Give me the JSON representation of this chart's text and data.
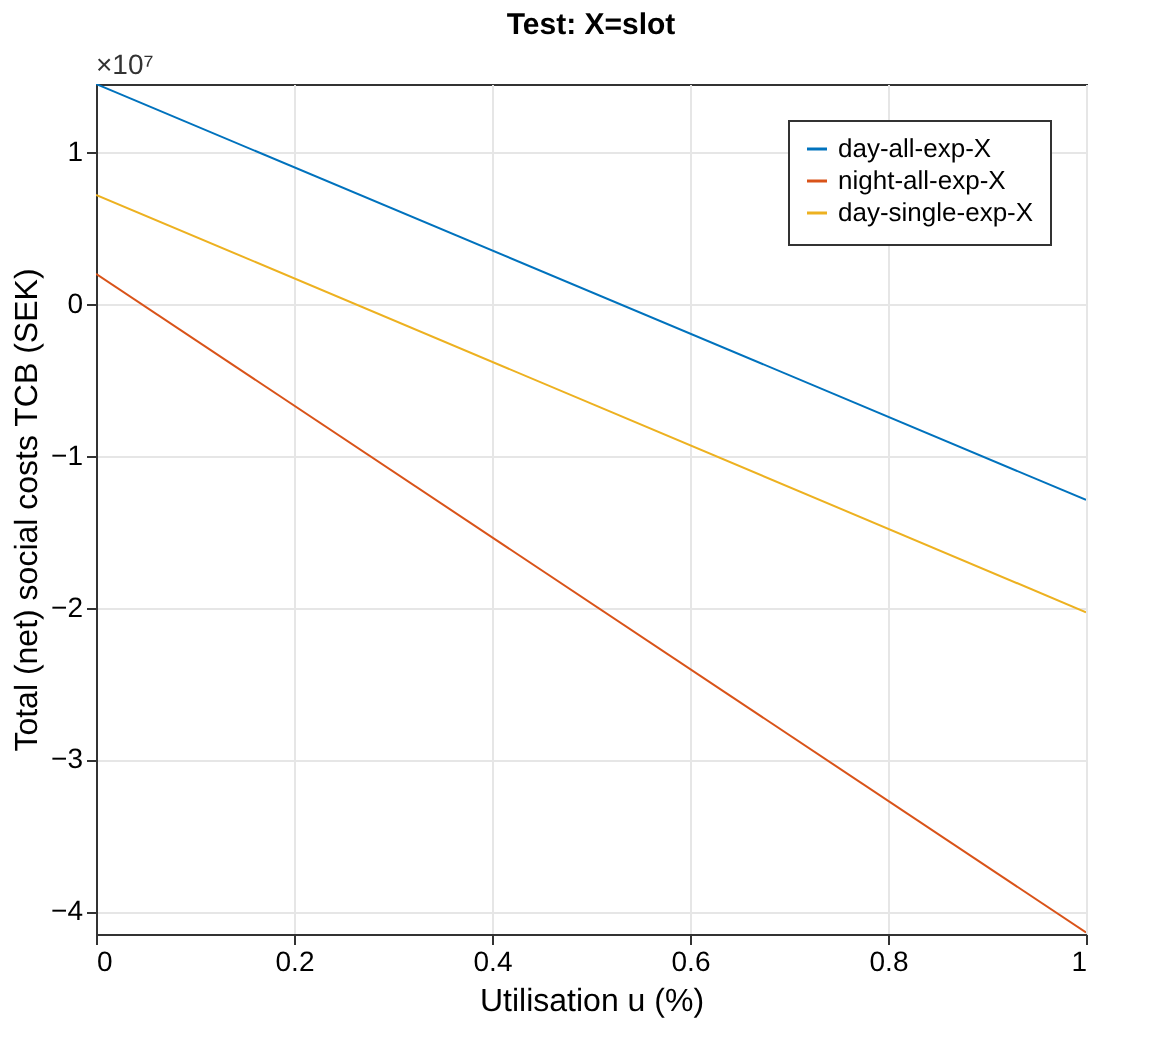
{
  "chart_data": {
    "type": "line",
    "title": "Test: X=slot",
    "xlabel": "Utilisation u (%)",
    "ylabel": "Total (net) social costs TCB (SEK)",
    "x": [
      0,
      1
    ],
    "series": [
      {
        "name": "day-all-exp-X",
        "color": "#0072bd",
        "values": [
          1.45,
          -1.29
        ]
      },
      {
        "name": "night-all-exp-X",
        "color": "#d95319",
        "values": [
          0.2,
          -4.14
        ]
      },
      {
        "name": "day-single-exp-X",
        "color": "#edb120",
        "values": [
          0.72,
          -2.03
        ]
      }
    ],
    "xlim": [
      0,
      1
    ],
    "xticks": [
      0,
      0.2,
      0.4,
      0.6,
      0.8,
      1
    ],
    "ylim": [
      -4.15,
      1.45
    ],
    "yticks": [
      -4,
      -3,
      -2,
      -1,
      0,
      1
    ],
    "annotations": [
      "×10⁷"
    ],
    "grid": true,
    "legend": "top right",
    "marker": "none",
    "line_style": "solid"
  }
}
